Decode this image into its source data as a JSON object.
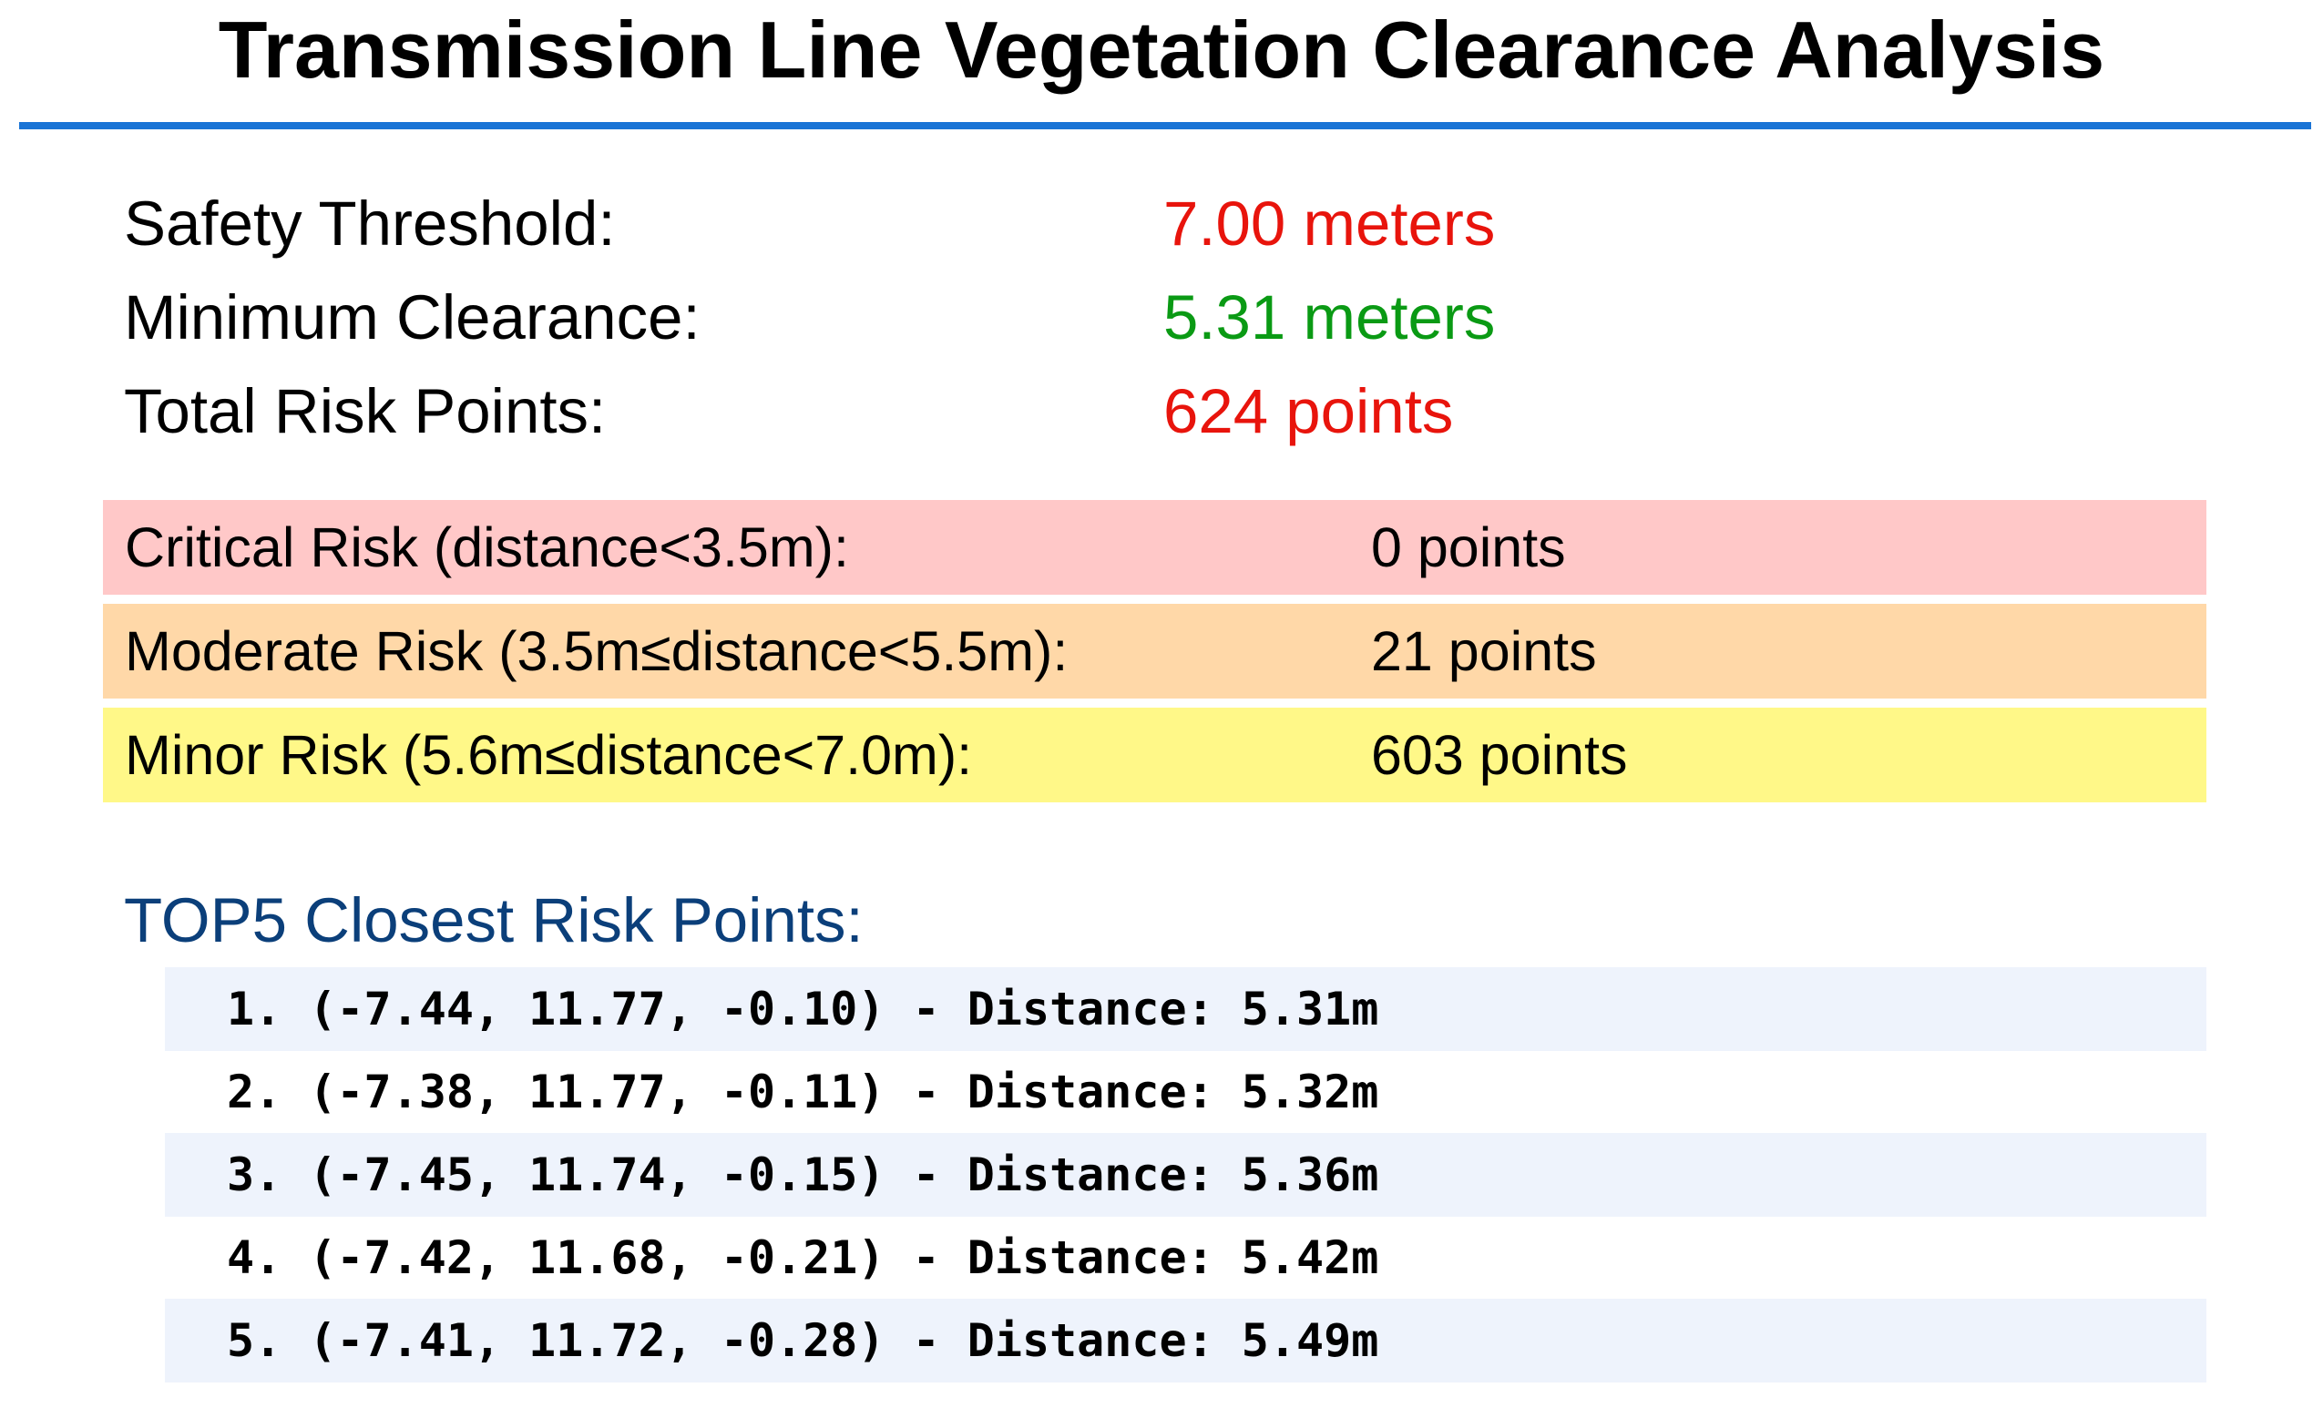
{
  "title": "Transmission Line Vegetation Clearance Analysis",
  "colors": {
    "title_rule": "#1a74d6",
    "value_red": "#e8140c",
    "value_green": "#0a9a14",
    "critical_bg": "#ffc8c8",
    "moderate_bg": "#ffd8a8",
    "minor_bg": "#fff888",
    "heading_blue": "#0b3f7a",
    "list_stripe": "#eef3fc"
  },
  "summary": {
    "safety_threshold": {
      "label": "Safety Threshold:",
      "value": "7.00 meters"
    },
    "minimum_clearance": {
      "label": "Minimum Clearance:",
      "value": "5.31 meters"
    },
    "total_risk_points": {
      "label": "Total Risk Points:",
      "value": "624 points"
    }
  },
  "risk_levels": {
    "critical": {
      "label": "Critical Risk (distance<3.5m):",
      "value": "0 points"
    },
    "moderate": {
      "label": "Moderate Risk (3.5m≤distance<5.5m):",
      "value": "21 points"
    },
    "minor": {
      "label": "Minor Risk (5.6m≤distance<7.0m):",
      "value": "603 points"
    }
  },
  "top5": {
    "heading": "TOP5 Closest Risk Points:",
    "items": [
      "1. (-7.44, 11.77, -0.10) - Distance: 5.31m",
      "2. (-7.38, 11.77, -0.11) - Distance: 5.32m",
      "3. (-7.45, 11.74, -0.15) - Distance: 5.36m",
      "4. (-7.42, 11.68, -0.21) - Distance: 5.42m",
      "5. (-7.41, 11.72, -0.28) - Distance: 5.49m"
    ]
  }
}
